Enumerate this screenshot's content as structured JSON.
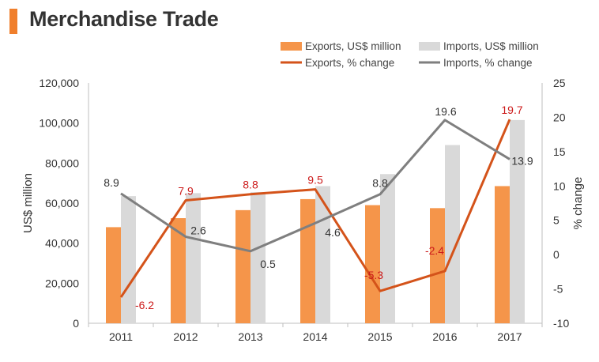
{
  "title": "Merchandise Trade",
  "chart_data": {
    "type": "bar",
    "categories": [
      "2011",
      "2012",
      "2013",
      "2014",
      "2015",
      "2016",
      "2017"
    ],
    "series": [
      {
        "name": "Exports, US$ million",
        "kind": "bar",
        "axis": "left",
        "color": "#f5954a",
        "values": [
          48000,
          52500,
          56500,
          62000,
          59000,
          57500,
          68500
        ]
      },
      {
        "name": "Imports, US$ million",
        "kind": "bar",
        "axis": "left",
        "color": "#d9d9d9",
        "values": [
          63500,
          65000,
          65500,
          68500,
          74500,
          89000,
          101500
        ]
      },
      {
        "name": "Exports, % change",
        "kind": "line",
        "axis": "right",
        "color": "#d4531a",
        "label_color": "#cc1a1a",
        "values": [
          -6.2,
          7.9,
          8.8,
          9.5,
          -5.3,
          -2.4,
          19.7
        ],
        "labels": [
          "-6.2",
          "7.9",
          "8.8",
          "9.5",
          "-5.3",
          "-2.4",
          "19.7"
        ]
      },
      {
        "name": "Imports, % change",
        "kind": "line",
        "axis": "right",
        "color": "#7f7f7f",
        "label_color": "#333333",
        "values": [
          8.9,
          2.6,
          0.5,
          4.6,
          8.8,
          19.6,
          13.9
        ],
        "labels": [
          "8.9",
          "2.6",
          "0.5",
          "4.6",
          "8.8",
          "19.6",
          "13.9"
        ]
      }
    ],
    "ylabel": "US$ million",
    "y2label": "% change",
    "ylim": [
      0,
      120000
    ],
    "y2lim": [
      -10,
      25
    ],
    "yticks": [
      "0",
      "20,000",
      "40,000",
      "60,000",
      "80,000",
      "100,000",
      "120,000"
    ],
    "y2ticks": [
      "-10",
      "-5",
      "0",
      "5",
      "10",
      "15",
      "20",
      "25"
    ],
    "grid": false,
    "legend_position": "top-right"
  }
}
